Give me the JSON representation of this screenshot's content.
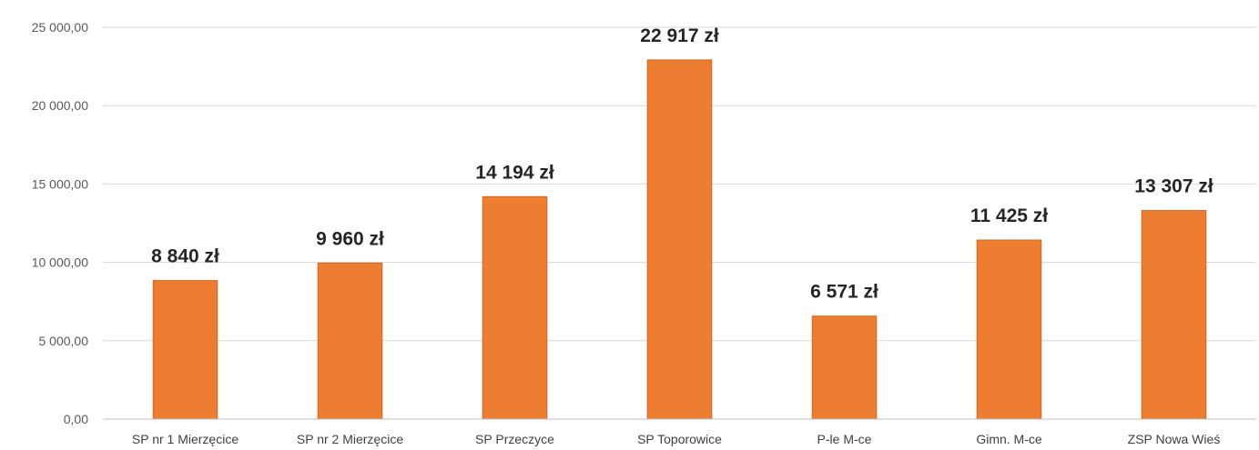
{
  "chart_data": {
    "type": "bar",
    "title": "",
    "xlabel": "",
    "ylabel": "",
    "categories": [
      "SP nr 1 Mierzęcice",
      "SP nr 2 Mierzęcice",
      "SP Przeczyce",
      "SP Toporowice",
      "P-le M-ce",
      "Gimn. M-ce",
      "ZSP Nowa Wieś"
    ],
    "values": [
      8840,
      9960,
      14194,
      22917,
      6571,
      11425,
      13307
    ],
    "data_labels": [
      "8 840 zł",
      "9 960 zł",
      "14 194 zł",
      "22 917 zł",
      "6 571 zł",
      "11 425 zł",
      "13 307 zł"
    ],
    "ylim": [
      0,
      25000
    ],
    "yticks": [
      0,
      5000,
      10000,
      15000,
      20000,
      25000
    ],
    "ytick_labels": [
      "0,00",
      "5 000,00",
      "10 000,00",
      "15 000,00",
      "20 000,00",
      "25 000,00"
    ],
    "grid": true,
    "legend": "none",
    "colors": {
      "bar": "#ed7d31",
      "grid": "#d9d9d9"
    }
  }
}
